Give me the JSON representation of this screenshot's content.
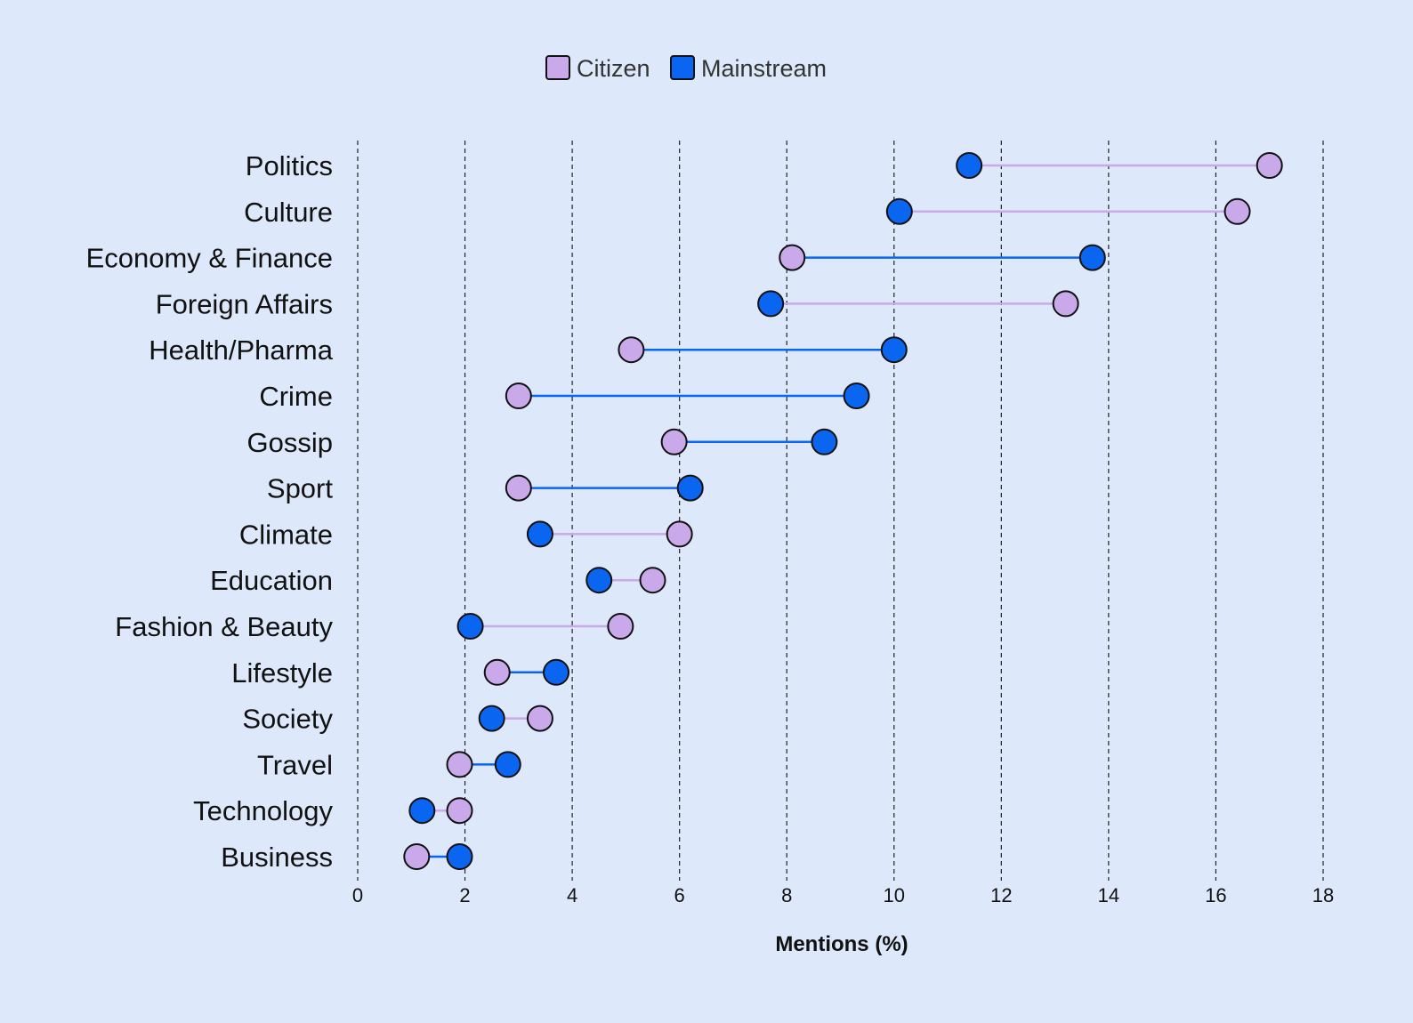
{
  "chart_data": {
    "type": "dumbbell",
    "xlabel": "Mentions (%)",
    "xlim": [
      0,
      18
    ],
    "xticks": [
      0,
      2,
      4,
      6,
      8,
      10,
      12,
      14,
      16,
      18
    ],
    "grid": "vertical dashed",
    "legend_placement": "top-center",
    "colors": {
      "Citizen": "#c9a9e9",
      "Mainstream": "#0a66f0",
      "outline": "#111111",
      "background": "#dde8fb"
    },
    "categories": [
      "Politics",
      "Culture",
      "Economy & Finance",
      "Foreign Affairs",
      "Health/Pharma",
      "Crime",
      "Gossip",
      "Sport",
      "Climate",
      "Education",
      "Fashion & Beauty",
      "Lifestyle",
      "Society",
      "Travel",
      "Technology",
      "Business"
    ],
    "series": [
      {
        "name": "Citizen",
        "values": [
          17.0,
          16.4,
          8.1,
          13.2,
          5.1,
          3.0,
          5.9,
          3.0,
          6.0,
          5.5,
          4.9,
          2.6,
          3.4,
          1.9,
          1.9,
          1.1
        ]
      },
      {
        "name": "Mainstream",
        "values": [
          11.4,
          10.1,
          13.7,
          7.7,
          10.0,
          9.3,
          8.7,
          6.2,
          3.4,
          4.5,
          2.1,
          3.7,
          2.5,
          2.8,
          1.2,
          1.9
        ]
      }
    ]
  }
}
